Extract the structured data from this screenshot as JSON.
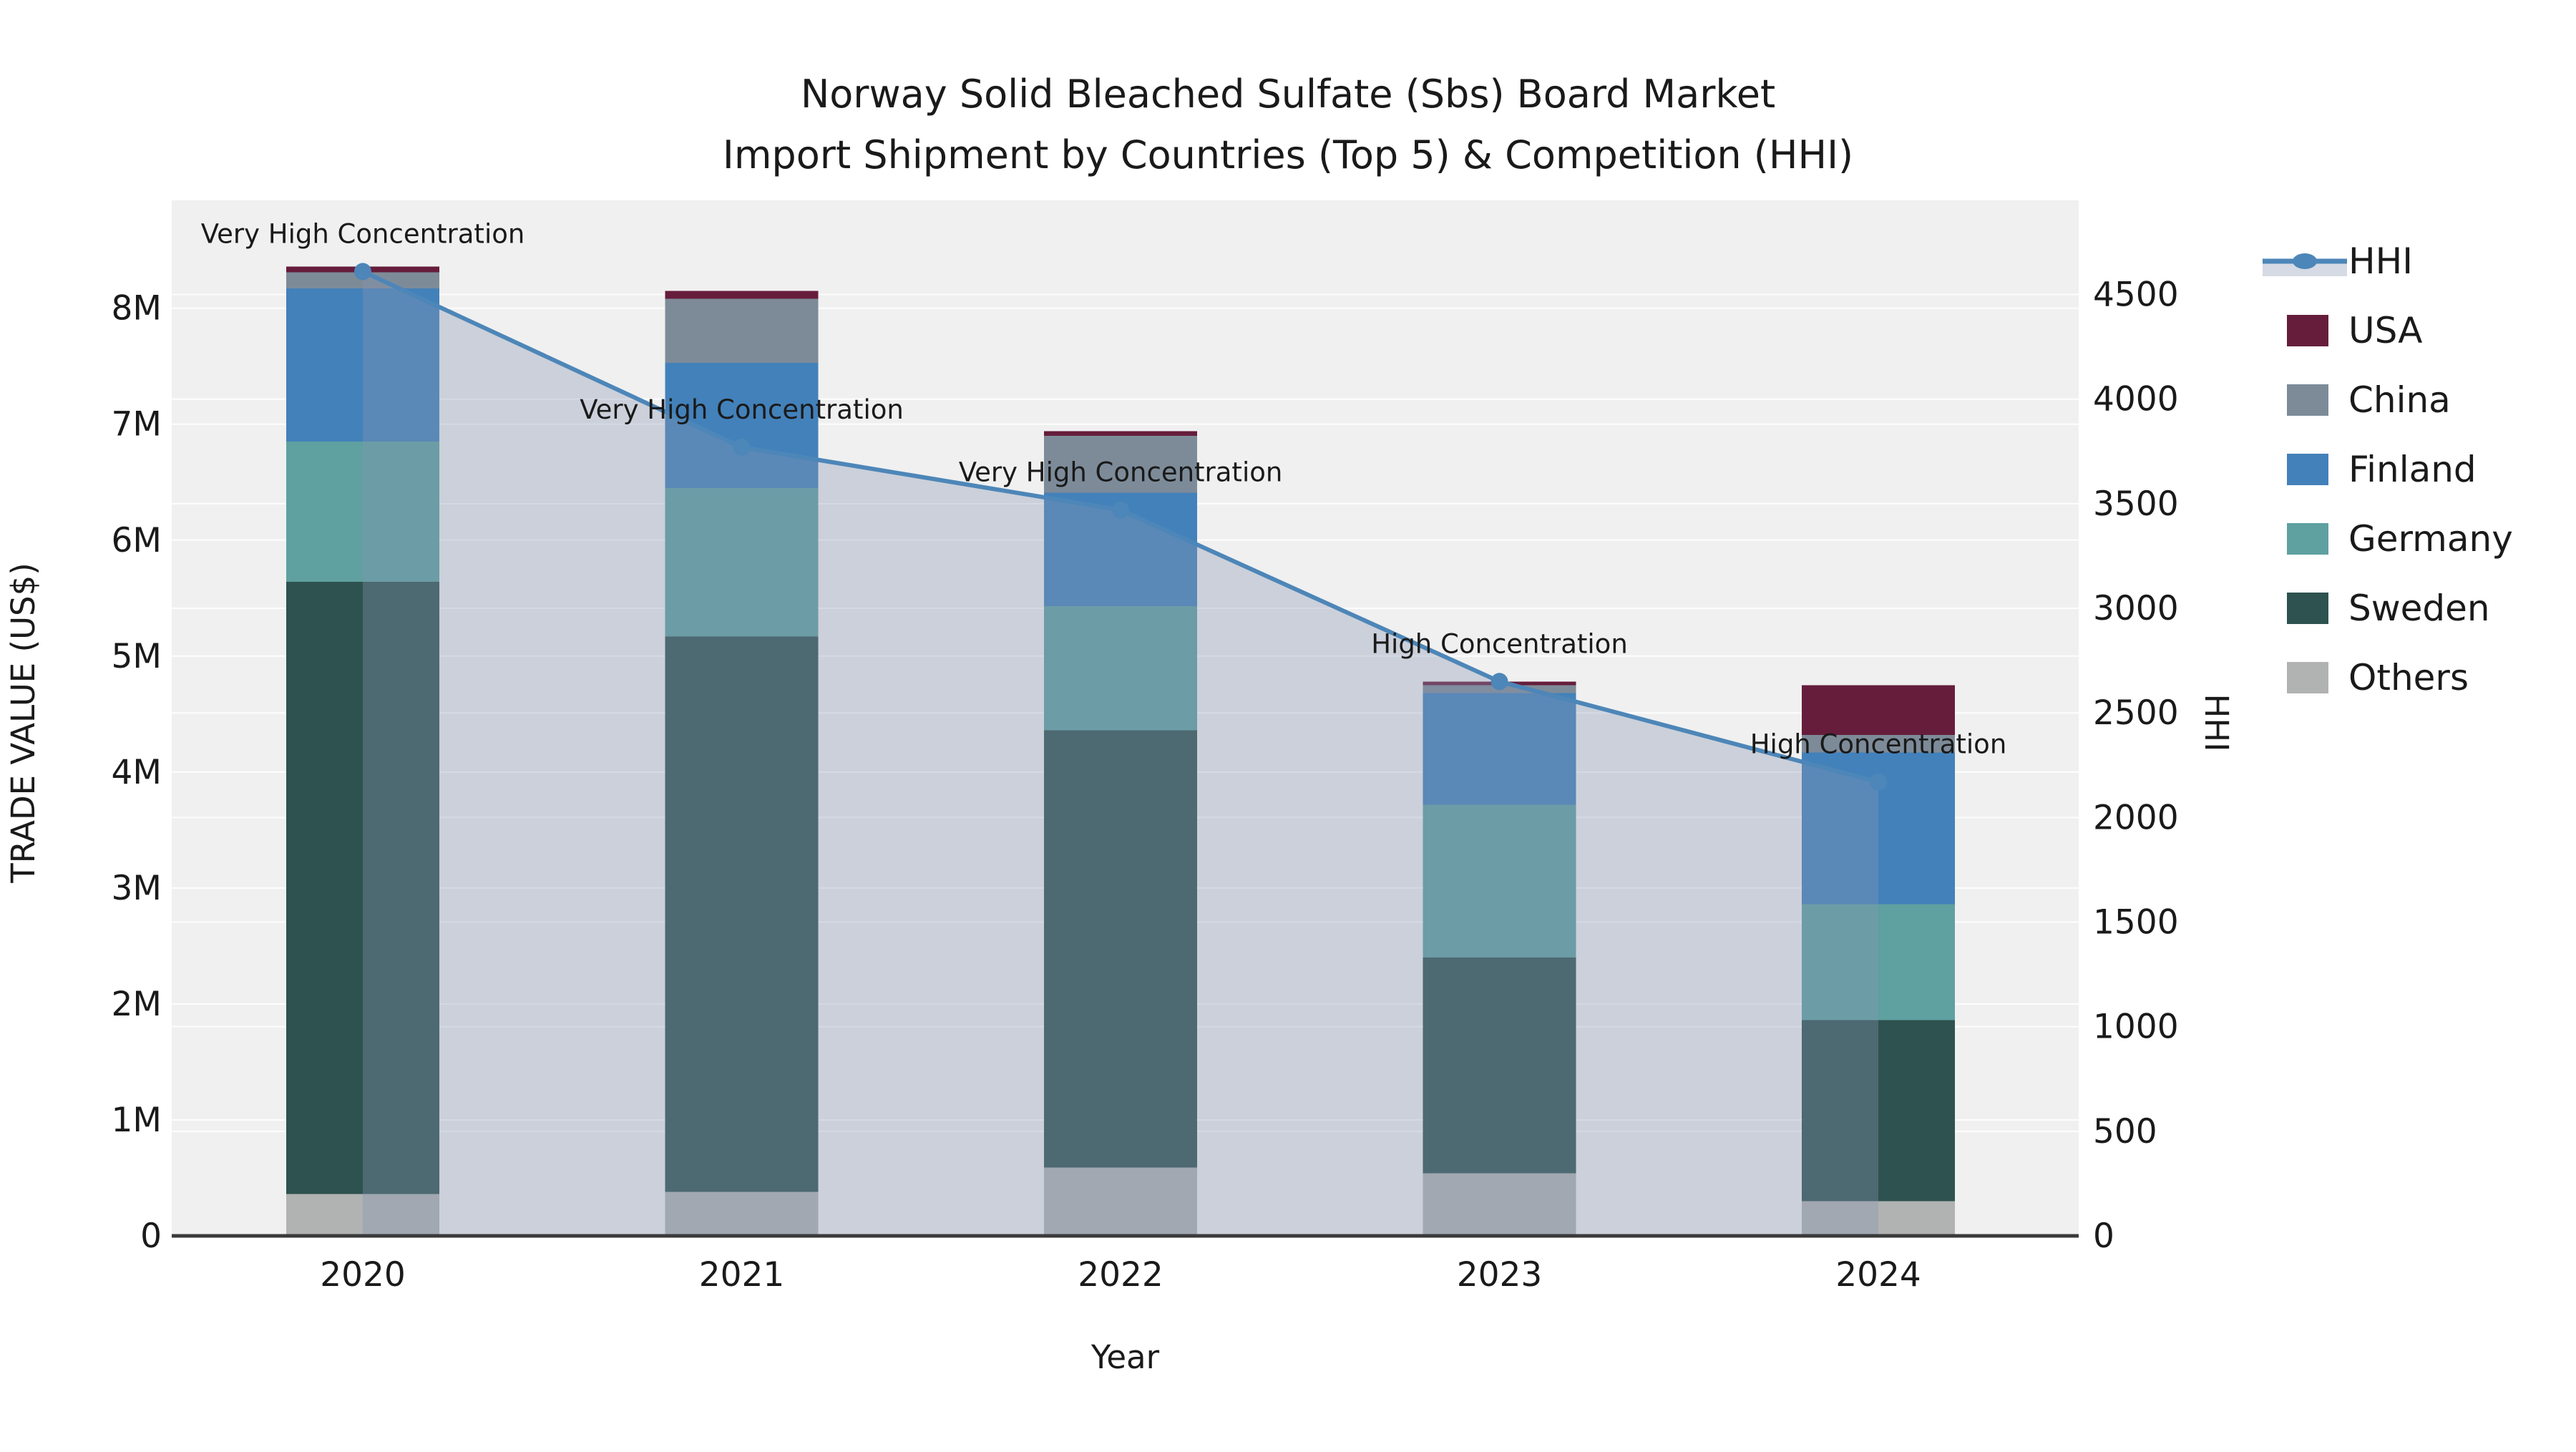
{
  "title": {
    "line1": "Norway Solid Bleached Sulfate (Sbs) Board Market",
    "line2": "Import Shipment by Countries (Top 5) & Competition (HHI)"
  },
  "colors": {
    "background": "#ffffff",
    "plot_background": "#f0f0f0",
    "gridline": "#ffffff",
    "axis_line": "#3a3a3a",
    "hhi_line": "#4d86b8",
    "hhi_fill": "rgba(134,148,177,0.35)",
    "usa": "#661d3b",
    "china": "#7d8b99",
    "finland": "#4381ba",
    "germany": "#5fa0a0",
    "sweden": "#2e524f",
    "others": "#b0b3b1"
  },
  "legend": {
    "items": [
      {
        "label": "HHI",
        "type": "line",
        "color": "#4d86b8"
      },
      {
        "label": "USA",
        "type": "patch",
        "color": "#661d3b"
      },
      {
        "label": "China",
        "type": "patch",
        "color": "#7d8b99"
      },
      {
        "label": "Finland",
        "type": "patch",
        "color": "#4381ba"
      },
      {
        "label": "Germany",
        "type": "patch",
        "color": "#5fa0a0"
      },
      {
        "label": "Sweden",
        "type": "patch",
        "color": "#2e524f"
      },
      {
        "label": "Others",
        "type": "patch",
        "color": "#b0b3b1"
      }
    ]
  },
  "chart_data": {
    "type": "combo-stacked-bar-and-area-line",
    "title": "Norway Solid Bleached Sulfate (Sbs) Board Market Import Shipment by Countries (Top 5) & Competition (HHI)",
    "xlabel": "Year",
    "ylabel_left": "TRADE VALUE (US$)",
    "ylabel_right": "HHI",
    "unit": "millions USD",
    "grid": true,
    "legend_position": "right",
    "categories": [
      "2020",
      "2021",
      "2022",
      "2023",
      "2024"
    ],
    "series": [
      {
        "name": "Others",
        "color": "#b0b3b1",
        "values": [
          0.36,
          0.38,
          0.59,
          0.54,
          0.3
        ]
      },
      {
        "name": "Sweden",
        "color": "#2e524f",
        "values": [
          5.28,
          4.79,
          3.77,
          1.86,
          1.56
        ]
      },
      {
        "name": "Germany",
        "color": "#5fa0a0",
        "values": [
          1.21,
          1.28,
          1.07,
          1.32,
          1.0
        ]
      },
      {
        "name": "Finland",
        "color": "#4381ba",
        "values": [
          1.32,
          1.08,
          0.98,
          0.96,
          1.31
        ]
      },
      {
        "name": "China",
        "color": "#7d8b99",
        "values": [
          0.14,
          0.55,
          0.49,
          0.07,
          0.15
        ]
      },
      {
        "name": "USA",
        "color": "#661d3b",
        "values": [
          0.05,
          0.07,
          0.04,
          0.03,
          0.43
        ]
      }
    ],
    "totals": [
      8.36,
      8.15,
      6.94,
      4.78,
      4.75
    ],
    "hhi": {
      "name": "HHI",
      "values": [
        4610,
        3770,
        3470,
        2650,
        2170
      ],
      "line_color": "#4d86b8",
      "fill_color": "rgba(134,148,177,0.35)"
    },
    "annotations": [
      {
        "category": "2020",
        "text": "Very High Concentration"
      },
      {
        "category": "2021",
        "text": "Very High Concentration"
      },
      {
        "category": "2022",
        "text": "Very High Concentration"
      },
      {
        "category": "2023",
        "text": "High Concentration"
      },
      {
        "category": "2024",
        "text": "High Concentration"
      }
    ],
    "left_axis": {
      "label": "TRADE VALUE (US$)",
      "max": 8.93,
      "ticks": [
        {
          "value": 0,
          "label": "0"
        },
        {
          "value": 1,
          "label": "1M"
        },
        {
          "value": 2,
          "label": "2M"
        },
        {
          "value": 3,
          "label": "3M"
        },
        {
          "value": 4,
          "label": "4M"
        },
        {
          "value": 5,
          "label": "5M"
        },
        {
          "value": 6,
          "label": "6M"
        },
        {
          "value": 7,
          "label": "7M"
        },
        {
          "value": 8,
          "label": "8M"
        }
      ]
    },
    "right_axis": {
      "label": "HHI",
      "max": 4950,
      "ticks": [
        {
          "value": 0,
          "label": "0"
        },
        {
          "value": 500,
          "label": "500"
        },
        {
          "value": 1000,
          "label": "1000"
        },
        {
          "value": 1500,
          "label": "1500"
        },
        {
          "value": 2000,
          "label": "2000"
        },
        {
          "value": 2500,
          "label": "2500"
        },
        {
          "value": 3000,
          "label": "3000"
        },
        {
          "value": 3500,
          "label": "3500"
        },
        {
          "value": 4000,
          "label": "4000"
        },
        {
          "value": 4500,
          "label": "4500"
        }
      ]
    }
  }
}
